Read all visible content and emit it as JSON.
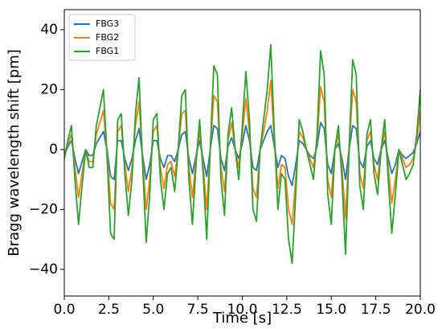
{
  "chart_data": {
    "type": "line",
    "xlabel": "Time [s]",
    "ylabel": "Bragg wavelength shift [pm]",
    "xlim": [
      0,
      20
    ],
    "ylim": [
      -48.9,
      46.7
    ],
    "xticks": [
      {
        "value": 0,
        "label": "0.0"
      },
      {
        "value": 2.5,
        "label": "2.5"
      },
      {
        "value": 5,
        "label": "5.0"
      },
      {
        "value": 7.5,
        "label": "7.5"
      },
      {
        "value": 10,
        "label": "10.0"
      },
      {
        "value": 12.5,
        "label": "12.5"
      },
      {
        "value": 15,
        "label": "15.0"
      },
      {
        "value": 17.5,
        "label": "17.5"
      },
      {
        "value": 20,
        "label": "20.0"
      }
    ],
    "yticks": [
      {
        "value": -40,
        "label": "−40"
      },
      {
        "value": -20,
        "label": "−20"
      },
      0,
      20,
      40
    ],
    "grid": false,
    "legend": "upper left",
    "x": [
      0,
      0.2,
      0.4,
      0.6,
      0.8,
      1,
      1.2,
      1.4,
      1.6,
      1.8,
      2,
      2.2,
      2.4,
      2.6,
      2.8,
      3,
      3.2,
      3.4,
      3.6,
      3.8,
      4,
      4.2,
      4.4,
      4.6,
      4.8,
      5,
      5.2,
      5.4,
      5.6,
      5.8,
      6,
      6.2,
      6.4,
      6.6,
      6.8,
      7,
      7.2,
      7.4,
      7.6,
      7.8,
      8,
      8.2,
      8.4,
      8.6,
      8.8,
      9,
      9.2,
      9.4,
      9.6,
      9.8,
      10,
      10.2,
      10.4,
      10.6,
      10.8,
      11,
      11.2,
      11.4,
      11.6,
      11.8,
      12,
      12.2,
      12.4,
      12.6,
      12.8,
      13,
      13.2,
      13.4,
      13.6,
      13.8,
      14,
      14.2,
      14.4,
      14.6,
      14.8,
      15,
      15.2,
      15.4,
      15.6,
      15.8,
      16,
      16.2,
      16.4,
      16.6,
      16.8,
      17,
      17.2,
      17.4,
      17.6,
      17.8,
      18,
      18.2,
      18.4,
      18.6,
      18.8,
      19,
      19.2,
      19.4,
      19.6,
      19.8,
      20
    ],
    "series": [
      {
        "name": "FBG3",
        "color": "#1f77b4",
        "values": [
          -2,
          1,
          3,
          -3,
          -8,
          -4,
          0,
          -2,
          -2,
          2,
          4,
          6,
          0,
          -9,
          -10,
          3,
          3,
          -3,
          -7,
          -3,
          3,
          7,
          -2,
          -10,
          -5,
          3,
          3,
          -3,
          -6,
          -2,
          -2,
          -4,
          0,
          5,
          6,
          -3,
          -8,
          -2,
          3,
          -3,
          -9,
          0,
          8,
          7,
          -3,
          -7,
          1,
          4,
          0,
          -3,
          2,
          8,
          3,
          -6,
          -7,
          0,
          3,
          6,
          8,
          1,
          -6,
          -2,
          -3,
          -9,
          -12,
          -5,
          3,
          2,
          0,
          -2,
          -3,
          1,
          9,
          7,
          -5,
          -8,
          0,
          2,
          -3,
          -10,
          0,
          8,
          7,
          -4,
          -6,
          1,
          3,
          -3,
          -5,
          0,
          3,
          -3,
          -8,
          -5,
          0,
          -2,
          -3,
          -2,
          -1,
          2,
          6
        ]
      },
      {
        "name": "FBG2",
        "color": "#ff7f0e",
        "values": [
          -2,
          2,
          5,
          -6,
          -16,
          -8,
          0,
          -4,
          -4,
          5,
          9,
          13,
          -1,
          -18,
          -20,
          6,
          8,
          -5,
          -14,
          -6,
          8,
          16,
          -3,
          -20,
          -10,
          6,
          8,
          -6,
          -13,
          -5,
          -4,
          -9,
          0,
          12,
          13,
          -6,
          -16,
          -3,
          6,
          -5,
          -20,
          0,
          18,
          16,
          -6,
          -14,
          3,
          9,
          0,
          -6,
          5,
          17,
          6,
          -13,
          -16,
          0,
          6,
          13,
          23,
          3,
          -13,
          -5,
          -6,
          -20,
          -25,
          -10,
          6,
          4,
          0,
          -3,
          -6,
          3,
          21,
          16,
          -10,
          -16,
          0,
          5,
          -6,
          -23,
          0,
          20,
          16,
          -8,
          -13,
          3,
          6,
          -5,
          -10,
          0,
          6,
          -6,
          -18,
          -10,
          0,
          -3,
          -6,
          -5,
          -3,
          3,
          13
        ]
      },
      {
        "name": "FBG1",
        "color": "#2ca02c",
        "values": [
          -3,
          3,
          8,
          -10,
          -25,
          -12,
          0,
          -6,
          -6,
          8,
          14,
          20,
          -2,
          -28,
          -30,
          10,
          12,
          -8,
          -22,
          -10,
          12,
          24,
          -5,
          -31,
          -15,
          10,
          12,
          -10,
          -20,
          -8,
          -6,
          -14,
          0,
          18,
          20,
          -10,
          -25,
          -5,
          10,
          -8,
          -30,
          0,
          28,
          25,
          -10,
          -22,
          5,
          14,
          0,
          -10,
          8,
          26,
          10,
          -20,
          -24,
          0,
          10,
          20,
          35,
          5,
          -20,
          -8,
          -10,
          -30,
          -38,
          -15,
          10,
          6,
          0,
          -5,
          -10,
          5,
          33,
          25,
          -15,
          -25,
          0,
          8,
          -10,
          -35,
          0,
          30,
          25,
          -12,
          -20,
          5,
          10,
          -8,
          -15,
          0,
          10,
          -10,
          -28,
          -15,
          0,
          -5,
          -10,
          -8,
          -5,
          5,
          20
        ]
      }
    ]
  }
}
